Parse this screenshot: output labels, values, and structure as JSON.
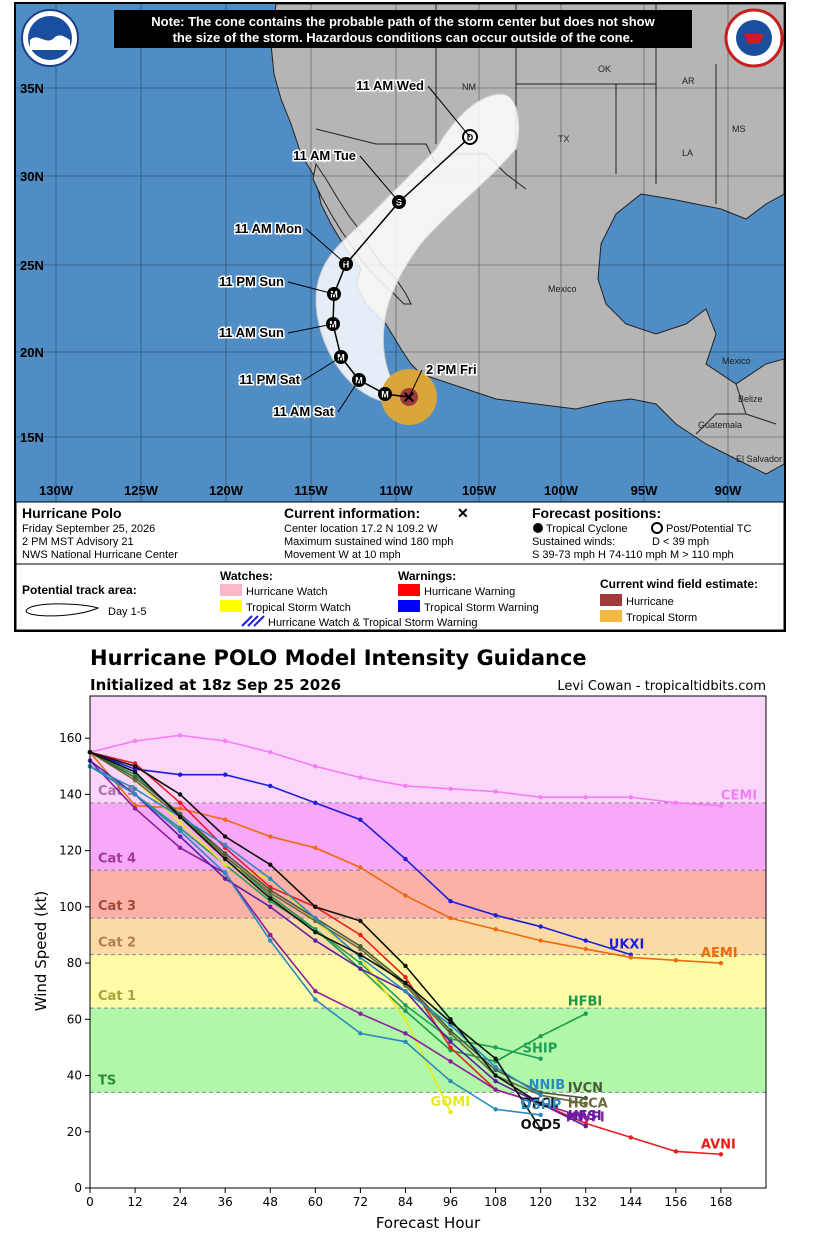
{
  "cone_map": {
    "note": [
      "Note: The cone contains the probable path of the storm center but does not show",
      "the size of the storm. Hazardous conditions can occur outside of the cone."
    ],
    "storm_name": "Hurricane Polo",
    "advisory_lines": [
      "Friday September 25, 2026",
      "2 PM MST Advisory 21",
      "NWS National Hurricane Center"
    ],
    "current_info_title": "Current information:",
    "current_info_lines": [
      "Center location 17.2 N 109.2 W",
      "Maximum sustained wind 180 mph",
      "Movement W at 10 mph"
    ],
    "forecast_title": "Forecast positions:",
    "forecast_legend": {
      "tc": "Tropical Cyclone",
      "post": "Post/Potential TC",
      "sustained": "Sustained winds:",
      "d": "D < 39 mph",
      "ranges": "S 39-73 mph  H 74-110 mph  M > 110 mph"
    },
    "track_area_title": "Potential track area:",
    "track_area_label": "Day 1-5",
    "watches_title": "Watches:",
    "watches": [
      "Hurricane Watch",
      "Tropical Storm Watch"
    ],
    "combo_label": "Hurricane Watch & Tropical Storm Warning",
    "warnings_title": "Warnings:",
    "warnings": [
      "Hurricane Warning",
      "Tropical Storm Warning"
    ],
    "wind_field_title": "Current wind field estimate:",
    "wind_field": [
      "Hurricane",
      "Tropical Storm"
    ],
    "lon_labels": [
      "130W",
      "125W",
      "120W",
      "115W",
      "110W",
      "105W",
      "100W",
      "95W",
      "90W"
    ],
    "lat_labels": [
      "35N",
      "30N",
      "25N",
      "20N",
      "15N"
    ],
    "place_labels": [
      "NM",
      "OK",
      "AR",
      "MS",
      "TX",
      "LA",
      "Mexico",
      "Mexico",
      "Belize",
      "Guatemala",
      "El Salvador"
    ],
    "track_points": [
      {
        "label": "2 PM Fri",
        "marker": "x"
      },
      {
        "label": "",
        "marker": "M"
      },
      {
        "label": "11 AM Sat",
        "marker": "M"
      },
      {
        "label": "11 PM Sat",
        "marker": "M"
      },
      {
        "label": "11 AM Sun",
        "marker": "M"
      },
      {
        "label": "11 PM Sun",
        "marker": "M"
      },
      {
        "label": "11 AM Mon",
        "marker": "H"
      },
      {
        "label": "11 AM Tue",
        "marker": "S"
      },
      {
        "label": "11 AM Wed",
        "marker": "D"
      }
    ],
    "colors": {
      "ocean": "#4f8dc4",
      "land": "#b5b5b5",
      "cone": "#ffffff",
      "ts_wind": "#d9a53a",
      "hur_wind": "#a03a3a"
    }
  },
  "intensity_title": "Hurricane POLO Model Intensity Guidance",
  "init_text": "Initialized at 18z Sep 25 2026",
  "credit": "Levi Cowan - tropicaltidbits.com",
  "chart_data": {
    "type": "line",
    "xlabel": "Forecast Hour",
    "ylabel": "Wind Speed (kt)",
    "xlim": [
      0,
      180
    ],
    "ylim": [
      0,
      175
    ],
    "x_ticks": [
      0,
      12,
      24,
      36,
      48,
      60,
      72,
      84,
      96,
      108,
      120,
      132,
      144,
      156,
      168
    ],
    "y_ticks": [
      0,
      20,
      40,
      60,
      80,
      100,
      120,
      140,
      160
    ],
    "bands": [
      {
        "label": "TS",
        "from": 34,
        "to": 64,
        "color": "#b1f7a8"
      },
      {
        "label": "Cat 1",
        "from": 64,
        "to": 83,
        "color": "#fdfba8"
      },
      {
        "label": "Cat 2",
        "from": 83,
        "to": 96,
        "color": "#fcdaa6"
      },
      {
        "label": "Cat 3",
        "from": 96,
        "to": 113,
        "color": "#fbb0a8"
      },
      {
        "label": "Cat 4",
        "from": 113,
        "to": 137,
        "color": "#f8a8f8"
      },
      {
        "label": "Cat 5",
        "from": 137,
        "to": 175,
        "color": "#fbd6fb"
      }
    ],
    "band_label_colors": {
      "TS": "#2e8b3a",
      "Cat 1": "#a8a43a",
      "Cat 2": "#b08050",
      "Cat 3": "#a04a3a",
      "Cat 4": "#a03a9a",
      "Cat 5": "#a870a0"
    },
    "series": [
      {
        "name": "CEMI",
        "color": "#f57ef5",
        "x": [
          0,
          12,
          24,
          36,
          48,
          60,
          72,
          84,
          96,
          108,
          120,
          132,
          144,
          156,
          168
        ],
        "y": [
          155,
          159,
          161,
          159,
          155,
          150,
          146,
          143,
          142,
          141,
          139,
          139,
          139,
          137,
          136
        ]
      },
      {
        "name": "UKXI",
        "color": "#1e1ed8",
        "x": [
          0,
          12,
          24,
          36,
          48,
          60,
          72,
          84,
          96,
          108,
          120,
          132,
          144
        ],
        "y": [
          155,
          149,
          147,
          147,
          143,
          137,
          131,
          117,
          102,
          97,
          93,
          88,
          83
        ]
      },
      {
        "name": "AEMI",
        "color": "#ee6a0e",
        "x": [
          0,
          12,
          24,
          36,
          48,
          60,
          72,
          84,
          96,
          108,
          120,
          132,
          144,
          156,
          168
        ],
        "y": [
          155,
          136,
          135,
          131,
          125,
          121,
          114,
          104,
          96,
          92,
          88,
          85,
          82,
          81,
          80
        ]
      },
      {
        "name": "HFBI",
        "color": "#1a9a4a",
        "x": [
          0,
          12,
          24,
          36,
          48,
          60,
          72,
          84,
          96,
          108,
          120,
          132
        ],
        "y": [
          155,
          147,
          133,
          118,
          104,
          92,
          78,
          63,
          49,
          45,
          54,
          62
        ]
      },
      {
        "name": "SHIP",
        "color": "#1ea05a",
        "x": [
          0,
          12,
          24,
          36,
          48,
          60,
          72,
          84,
          96,
          108,
          120
        ],
        "y": [
          150,
          140,
          128,
          115,
          102,
          92,
          80,
          65,
          53,
          50,
          46
        ]
      },
      {
        "name": "GOMI",
        "color": "#e8e81e",
        "x": [
          0,
          12,
          24,
          36,
          48,
          60,
          72,
          84,
          96
        ],
        "y": [
          155,
          145,
          130,
          115,
          110,
          95,
          82,
          60,
          27
        ]
      },
      {
        "name": "AVNI",
        "color": "#e81e1e",
        "x": [
          0,
          12,
          24,
          36,
          48,
          60,
          72,
          84,
          96,
          108,
          120,
          132,
          144,
          156,
          168
        ],
        "y": [
          155,
          151,
          137,
          121,
          107,
          100,
          90,
          75,
          50,
          35,
          30,
          23,
          18,
          13,
          12
        ]
      },
      {
        "name": "HWFI",
        "color": "#8a1ea0",
        "x": [
          0,
          12,
          24,
          36,
          48,
          60,
          72,
          84,
          96,
          108,
          120,
          132
        ],
        "y": [
          152,
          135,
          121,
          112,
          90,
          70,
          62,
          55,
          45,
          35,
          30,
          25
        ]
      },
      {
        "name": "HFSI",
        "color": "#5a1ea0",
        "x": [
          0,
          12,
          24,
          36,
          48,
          60,
          72,
          84,
          96,
          108,
          120,
          132
        ],
        "y": [
          152,
          140,
          125,
          110,
          100,
          88,
          78,
          70,
          52,
          38,
          30,
          22
        ]
      },
      {
        "name": "HCCA",
        "color": "#6a6a3a",
        "x": [
          0,
          12,
          24,
          36,
          48,
          60,
          72,
          84,
          96,
          108,
          120,
          132
        ],
        "y": [
          155,
          145,
          132,
          118,
          105,
          95,
          85,
          72,
          55,
          40,
          33,
          30
        ]
      },
      {
        "name": "IVCN",
        "color": "#4a5a3a",
        "x": [
          0,
          12,
          24,
          36,
          48,
          60,
          72,
          84,
          96,
          108,
          120,
          132
        ],
        "y": [
          155,
          146,
          133,
          119,
          106,
          96,
          86,
          73,
          56,
          42,
          34,
          32
        ]
      },
      {
        "name": "NNIB",
        "color": "#2a8ac0",
        "x": [
          0,
          12,
          24,
          36,
          48,
          60,
          72,
          84,
          96,
          108,
          120
        ],
        "y": [
          150,
          142,
          132,
          122,
          110,
          96,
          82,
          70,
          58,
          43,
          33
        ]
      },
      {
        "name": "OFCL",
        "color": "#111111",
        "x": [
          0,
          12,
          24,
          36,
          48,
          60,
          72,
          84,
          96,
          108,
          120
        ],
        "y": [
          155,
          150,
          140,
          125,
          115,
          100,
          95,
          79,
          60,
          40,
          30
        ]
      },
      {
        "name": "OCD5",
        "color": "#111111",
        "x": [
          0,
          12,
          24,
          36,
          48,
          60,
          72,
          84,
          96,
          108,
          120
        ],
        "y": [
          155,
          148,
          132,
          117,
          103,
          91,
          83,
          73,
          59,
          46,
          21
        ]
      },
      {
        "name": "DSHP",
        "color": "#2a8ac0",
        "x": [
          0,
          12,
          24,
          36,
          48,
          60,
          72,
          84,
          96,
          108,
          120
        ],
        "y": [
          150,
          140,
          127,
          112,
          88,
          67,
          55,
          52,
          38,
          28,
          26
        ]
      }
    ]
  }
}
